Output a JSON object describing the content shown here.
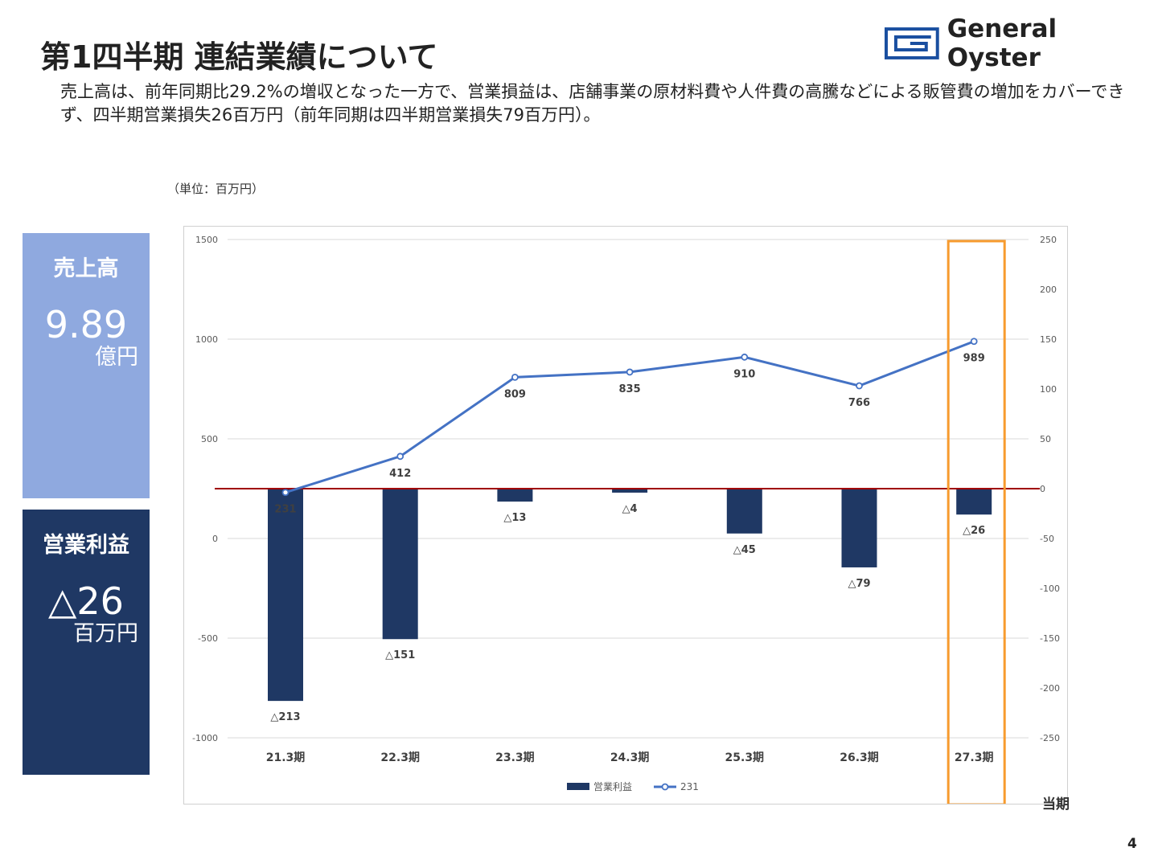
{
  "title": "第1四半期 連結業績について",
  "logo": {
    "text": "General Oyster",
    "color": "#1a4fa0"
  },
  "description": "売上高は、前年同期比29.2%の増収となった一方で、営業損益は、店舗事業の原材料費や人件費の高騰などによる販管費の増加をカバーできず、四半期営業損失26百万円（前年同期は四半期営業損失79百万円）。",
  "unit_note": "（単位：百万円）",
  "kpi": {
    "sales": {
      "label": "売上高",
      "value": "9.89",
      "unit": "億円",
      "color": "#8fa9df"
    },
    "operating": {
      "label": "営業利益",
      "value": "△26",
      "unit": "百万円",
      "color": "#1f3864"
    }
  },
  "current_label": "当期",
  "page_number": "4",
  "chart_data": {
    "type": "bar+line",
    "categories": [
      "21.3期",
      "22.3期",
      "23.3期",
      "24.3期",
      "25.3期",
      "26.3期",
      "27.3期"
    ],
    "series": [
      {
        "name": "営業利益",
        "type": "bar",
        "axis": "right",
        "color": "#1f3864",
        "values": [
          -213,
          -151,
          -13,
          -4,
          -45,
          -79,
          -26
        ],
        "labels": [
          "△213",
          "△151",
          "△13",
          "△4",
          "△45",
          "△79",
          "△26"
        ]
      },
      {
        "name": "231",
        "type": "line",
        "axis": "left",
        "color": "#4472c4",
        "values": [
          231,
          412,
          809,
          835,
          910,
          766,
          989
        ],
        "labels": [
          "231",
          "412",
          "809",
          "835",
          "910",
          "766",
          "989"
        ]
      }
    ],
    "left_axis": {
      "min": -1000,
      "max": 1500,
      "ticks": [
        1500,
        1000,
        500,
        0,
        -500,
        -1000
      ]
    },
    "right_axis": {
      "min": -250,
      "max": 250,
      "ticks": [
        250,
        200,
        150,
        100,
        50,
        0,
        -50,
        -100,
        -150,
        -200,
        -250
      ]
    },
    "grid": true,
    "legend_position": "bottom",
    "highlight_category": "27.3期",
    "highlight_color": "#f79b2e",
    "zero_line_color": "#a00000"
  }
}
